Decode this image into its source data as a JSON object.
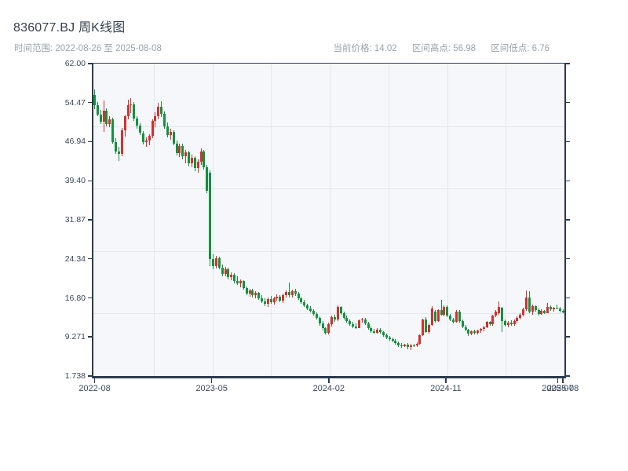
{
  "header": {
    "title": "836077.BJ 周K线图",
    "date_range": "时间范围: 2022-08-26 至 2025-08-08",
    "stats": [
      "当前价格: 14.02",
      "区间高点: 56.98",
      "区间低点: 6.76"
    ]
  },
  "chart_data": {
    "type": "candlestick",
    "title": "836077.BJ 周K线图",
    "frequency": "weekly",
    "current_price": 14.02,
    "range_high": 56.98,
    "range_low": 6.76,
    "ylim": [
      1.738,
      62.0
    ],
    "y_ticks": [
      "62.00",
      "54.47",
      "46.94",
      "39.40",
      "31.87",
      "24.34",
      "16.80",
      "9.271",
      "1.738"
    ],
    "x_ticks": [
      {
        "label": "2022-08",
        "index": 0
      },
      {
        "label": "2023-05",
        "index": 38.5
      },
      {
        "label": "2024-02",
        "index": 77
      },
      {
        "label": "2024-11",
        "index": 115.5
      },
      {
        "label": "2025-07",
        "index": 152.3
      },
      {
        "label": "2025-08",
        "index": 154
      }
    ],
    "grid": true,
    "legend": "none",
    "colors": {
      "up": "#d4302e",
      "down": "#149140",
      "plot_bg": "#f5f7fa",
      "grid": "#e3e7ec",
      "spine": "#2d3b4f"
    },
    "columns": [
      "date",
      "open",
      "high",
      "low",
      "close"
    ],
    "candles": [
      [
        "2022-08-26",
        55.9,
        56.98,
        53.2,
        54.0
      ],
      [
        "2022-09-02",
        54.0,
        54.6,
        51.8,
        52.2
      ],
      [
        "2022-09-09",
        52.2,
        53.0,
        50.3,
        50.8
      ],
      [
        "2022-09-16",
        50.8,
        54.9,
        48.9,
        52.9
      ],
      [
        "2022-09-23",
        52.9,
        53.3,
        49.9,
        50.3
      ],
      [
        "2022-09-30",
        50.3,
        51.8,
        49.7,
        51.2
      ],
      [
        "2022-10-07",
        51.2,
        51.6,
        46.5,
        46.9
      ],
      [
        "2022-10-14",
        46.9,
        47.6,
        44.6,
        45.1
      ],
      [
        "2022-10-21",
        45.1,
        46.0,
        43.3,
        44.6
      ],
      [
        "2022-10-28",
        44.6,
        49.6,
        44.2,
        49.2
      ],
      [
        "2022-11-04",
        49.2,
        52.0,
        47.9,
        51.8
      ],
      [
        "2022-11-11",
        51.8,
        55.0,
        51.2,
        53.9
      ],
      [
        "2022-11-18",
        53.9,
        55.4,
        52.4,
        54.2
      ],
      [
        "2022-11-25",
        54.2,
        54.6,
        50.9,
        51.4
      ],
      [
        "2022-12-02",
        51.4,
        51.9,
        49.4,
        50.0
      ],
      [
        "2022-12-09",
        50.0,
        50.5,
        48.2,
        48.6
      ],
      [
        "2022-12-16",
        48.6,
        49.0,
        46.4,
        46.9
      ],
      [
        "2022-12-23",
        46.9,
        47.8,
        45.9,
        47.2
      ],
      [
        "2022-12-30",
        47.2,
        48.4,
        46.3,
        48.0
      ],
      [
        "2023-01-06",
        48.0,
        51.2,
        47.6,
        50.9
      ],
      [
        "2023-01-13",
        50.9,
        52.6,
        49.8,
        51.9
      ],
      [
        "2023-01-20",
        51.9,
        54.5,
        51.3,
        53.6
      ],
      [
        "2023-01-27",
        53.6,
        54.8,
        51.7,
        52.3
      ],
      [
        "2023-02-03",
        52.3,
        52.8,
        49.5,
        49.9
      ],
      [
        "2023-02-10",
        49.9,
        50.6,
        47.7,
        48.2
      ],
      [
        "2023-02-17",
        48.2,
        49.4,
        47.3,
        48.9
      ],
      [
        "2023-02-24",
        48.9,
        49.2,
        46.2,
        46.6
      ],
      [
        "2023-03-03",
        46.6,
        47.1,
        44.3,
        44.8
      ],
      [
        "2023-03-10",
        44.8,
        46.6,
        44.0,
        46.1
      ],
      [
        "2023-03-17",
        46.1,
        46.5,
        43.6,
        44.1
      ],
      [
        "2023-03-24",
        44.1,
        45.3,
        42.8,
        44.9
      ],
      [
        "2023-03-31",
        44.9,
        45.2,
        42.2,
        42.7
      ],
      [
        "2023-04-07",
        42.7,
        44.4,
        42.0,
        43.9
      ],
      [
        "2023-04-14",
        43.9,
        44.2,
        41.3,
        41.8
      ],
      [
        "2023-04-21",
        41.8,
        43.5,
        41.0,
        43.0
      ],
      [
        "2023-04-28",
        43.0,
        45.6,
        42.5,
        45.1
      ],
      [
        "2023-05-05",
        45.1,
        45.4,
        41.6,
        42.0
      ],
      [
        "2023-05-12",
        42.0,
        42.4,
        37.0,
        37.4
      ],
      [
        "2023-05-19",
        41.0,
        41.4,
        23.0,
        24.3
      ],
      [
        "2023-05-26",
        24.3,
        25.2,
        22.4,
        22.9
      ],
      [
        "2023-06-02",
        22.9,
        24.9,
        22.5,
        24.5
      ],
      [
        "2023-06-09",
        24.5,
        24.8,
        22.3,
        22.7
      ],
      [
        "2023-06-16",
        22.7,
        23.3,
        21.0,
        21.4
      ],
      [
        "2023-06-23",
        21.4,
        22.8,
        20.9,
        22.4
      ],
      [
        "2023-06-30",
        22.4,
        22.7,
        20.4,
        20.8
      ],
      [
        "2023-07-07",
        20.8,
        21.7,
        20.2,
        21.3
      ],
      [
        "2023-07-14",
        21.3,
        21.6,
        19.6,
        20.0
      ],
      [
        "2023-07-21",
        20.0,
        20.9,
        19.3,
        19.6
      ],
      [
        "2023-07-28",
        19.6,
        20.3,
        18.9,
        20.0
      ],
      [
        "2023-08-04",
        20.0,
        20.2,
        18.4,
        18.7
      ],
      [
        "2023-08-11",
        18.7,
        19.0,
        17.3,
        17.7
      ],
      [
        "2023-08-18",
        17.7,
        18.6,
        17.0,
        18.2
      ],
      [
        "2023-08-25",
        18.2,
        18.5,
        16.9,
        17.3
      ],
      [
        "2023-09-01",
        17.3,
        18.1,
        16.8,
        17.8
      ],
      [
        "2023-09-08",
        17.8,
        18.0,
        16.4,
        16.7
      ],
      [
        "2023-09-15",
        16.7,
        17.4,
        15.8,
        16.1
      ],
      [
        "2023-09-22",
        16.1,
        16.8,
        15.2,
        15.6
      ],
      [
        "2023-09-29",
        15.6,
        16.9,
        15.1,
        16.6
      ],
      [
        "2023-10-06",
        16.6,
        17.2,
        15.7,
        16.0
      ],
      [
        "2023-10-13",
        16.0,
        17.0,
        15.5,
        16.8
      ],
      [
        "2023-10-20",
        16.8,
        17.5,
        16.2,
        17.1
      ],
      [
        "2023-10-27",
        17.1,
        17.4,
        15.9,
        16.3
      ],
      [
        "2023-11-03",
        16.3,
        17.7,
        15.8,
        17.4
      ],
      [
        "2023-11-10",
        17.4,
        18.3,
        16.9,
        17.9
      ],
      [
        "2023-11-17",
        17.9,
        19.8,
        16.9,
        17.3
      ],
      [
        "2023-11-24",
        17.3,
        18.4,
        16.9,
        18.1
      ],
      [
        "2023-12-01",
        18.1,
        18.5,
        17.2,
        17.6
      ],
      [
        "2023-12-08",
        17.6,
        17.9,
        16.4,
        16.7
      ],
      [
        "2023-12-15",
        16.7,
        17.0,
        15.7,
        16.0
      ],
      [
        "2023-12-22",
        16.0,
        16.4,
        15.0,
        15.3
      ],
      [
        "2023-12-29",
        15.3,
        15.7,
        14.5,
        14.8
      ],
      [
        "2024-01-05",
        14.8,
        15.2,
        14.0,
        14.3
      ],
      [
        "2024-01-12",
        14.3,
        14.6,
        13.4,
        13.7
      ],
      [
        "2024-01-19",
        13.7,
        14.0,
        12.6,
        12.9
      ],
      [
        "2024-01-26",
        12.9,
        13.2,
        11.5,
        11.9
      ],
      [
        "2024-02-02",
        11.9,
        12.4,
        10.5,
        10.9
      ],
      [
        "2024-02-09",
        10.9,
        11.2,
        9.7,
        10.1
      ],
      [
        "2024-02-16",
        10.1,
        12.0,
        9.8,
        11.7
      ],
      [
        "2024-02-23",
        11.7,
        13.4,
        11.3,
        13.1
      ],
      [
        "2024-03-01",
        13.1,
        13.6,
        12.2,
        12.6
      ],
      [
        "2024-03-08",
        12.6,
        15.4,
        12.3,
        15.0
      ],
      [
        "2024-03-15",
        15.0,
        15.2,
        13.5,
        13.8
      ],
      [
        "2024-03-22",
        13.8,
        14.1,
        12.7,
        13.0
      ],
      [
        "2024-03-29",
        13.0,
        13.4,
        12.0,
        12.3
      ],
      [
        "2024-04-05",
        12.3,
        12.7,
        11.4,
        11.7
      ],
      [
        "2024-04-12",
        11.7,
        12.2,
        11.0,
        11.3
      ],
      [
        "2024-04-19",
        11.3,
        11.9,
        10.8,
        11.0
      ],
      [
        "2024-04-26",
        11.0,
        12.7,
        10.9,
        12.5
      ],
      [
        "2024-05-03",
        12.5,
        13.0,
        12.0,
        12.7
      ],
      [
        "2024-05-10",
        12.7,
        12.9,
        11.6,
        11.9
      ],
      [
        "2024-05-17",
        11.9,
        12.2,
        10.6,
        10.9
      ],
      [
        "2024-05-24",
        10.9,
        11.3,
        10.1,
        10.4
      ],
      [
        "2024-05-31",
        10.4,
        10.8,
        9.9,
        10.1
      ],
      [
        "2024-06-07",
        10.1,
        10.9,
        9.9,
        10.7
      ],
      [
        "2024-06-14",
        10.7,
        10.9,
        9.9,
        10.2
      ],
      [
        "2024-06-21",
        10.2,
        10.4,
        9.3,
        9.6
      ],
      [
        "2024-06-28",
        9.6,
        9.9,
        8.9,
        9.2
      ],
      [
        "2024-07-05",
        9.2,
        9.5,
        8.6,
        8.9
      ],
      [
        "2024-07-12",
        8.9,
        9.2,
        8.3,
        8.6
      ],
      [
        "2024-07-19",
        8.6,
        8.9,
        7.8,
        8.1
      ],
      [
        "2024-07-26",
        8.1,
        8.4,
        7.4,
        7.7
      ],
      [
        "2024-08-02",
        7.7,
        8.1,
        7.2,
        7.5
      ],
      [
        "2024-08-09",
        7.5,
        8.0,
        7.3,
        7.8
      ],
      [
        "2024-08-16",
        7.8,
        8.1,
        6.9,
        7.4
      ],
      [
        "2024-08-23",
        7.4,
        7.9,
        6.76,
        7.7
      ],
      [
        "2024-08-30",
        7.7,
        8.0,
        7.3,
        7.6
      ],
      [
        "2024-09-06",
        7.6,
        8.2,
        7.4,
        8.0
      ],
      [
        "2024-09-13",
        8.0,
        9.7,
        7.8,
        9.6
      ],
      [
        "2024-09-20",
        9.6,
        12.8,
        9.4,
        12.6
      ],
      [
        "2024-09-27",
        12.6,
        13.1,
        10.0,
        10.2
      ],
      [
        "2024-10-04",
        10.2,
        11.9,
        9.9,
        11.6
      ],
      [
        "2024-10-11",
        11.6,
        15.2,
        11.4,
        14.7
      ],
      [
        "2024-10-18",
        14.2,
        14.5,
        12.1,
        12.4
      ],
      [
        "2024-10-25",
        12.4,
        14.6,
        12.2,
        14.4
      ],
      [
        "2024-11-01",
        14.4,
        16.5,
        13.4,
        13.6
      ],
      [
        "2024-11-08",
        13.6,
        15.4,
        13.3,
        15.1
      ],
      [
        "2024-11-15",
        15.1,
        15.3,
        13.1,
        13.4
      ],
      [
        "2024-11-22",
        13.4,
        13.7,
        12.4,
        12.7
      ],
      [
        "2024-11-29",
        12.7,
        13.0,
        11.9,
        12.2
      ],
      [
        "2024-12-06",
        12.2,
        14.4,
        12.0,
        14.2
      ],
      [
        "2024-12-13",
        14.2,
        14.4,
        12.0,
        12.3
      ],
      [
        "2024-12-20",
        12.3,
        12.6,
        10.9,
        11.2
      ],
      [
        "2024-12-27",
        11.2,
        11.6,
        10.3,
        10.6
      ],
      [
        "2025-01-03",
        10.6,
        10.8,
        9.4,
        9.9
      ],
      [
        "2025-01-10",
        9.9,
        10.5,
        9.6,
        10.3
      ],
      [
        "2025-01-17",
        10.3,
        10.6,
        9.7,
        10.0
      ],
      [
        "2025-01-24",
        10.0,
        10.7,
        9.8,
        10.5
      ],
      [
        "2025-01-31",
        10.5,
        11.0,
        10.1,
        10.8
      ],
      [
        "2025-02-07",
        10.8,
        11.4,
        10.4,
        11.1
      ],
      [
        "2025-02-14",
        11.1,
        12.4,
        10.9,
        12.2
      ],
      [
        "2025-02-21",
        12.2,
        12.4,
        11.4,
        11.7
      ],
      [
        "2025-02-28",
        11.7,
        13.6,
        11.5,
        13.4
      ],
      [
        "2025-03-07",
        13.4,
        14.5,
        13.1,
        14.1
      ],
      [
        "2025-03-14",
        13.9,
        16.1,
        13.5,
        15.0
      ],
      [
        "2025-03-21",
        14.9,
        15.1,
        10.2,
        12.3
      ],
      [
        "2025-03-28",
        12.3,
        12.6,
        11.3,
        11.6
      ],
      [
        "2025-04-04",
        11.6,
        12.4,
        11.2,
        12.1
      ],
      [
        "2025-04-11",
        12.1,
        12.5,
        11.4,
        11.7
      ],
      [
        "2025-04-18",
        11.7,
        12.6,
        11.5,
        12.4
      ],
      [
        "2025-04-25",
        12.4,
        13.2,
        12.1,
        13.0
      ],
      [
        "2025-05-02",
        13.0,
        13.9,
        12.7,
        13.6
      ],
      [
        "2025-05-09",
        13.6,
        14.9,
        13.2,
        14.6
      ],
      [
        "2025-05-16",
        14.6,
        18.3,
        14.3,
        16.9
      ],
      [
        "2025-05-23",
        16.9,
        18.1,
        13.9,
        14.2
      ],
      [
        "2025-05-30",
        14.2,
        15.5,
        13.6,
        15.2
      ],
      [
        "2025-06-06",
        15.2,
        15.4,
        14.1,
        14.4
      ],
      [
        "2025-06-13",
        14.4,
        14.7,
        13.4,
        13.7
      ],
      [
        "2025-06-20",
        13.7,
        14.6,
        13.5,
        14.3
      ],
      [
        "2025-06-27",
        14.3,
        14.5,
        13.7,
        13.9
      ],
      [
        "2025-07-04",
        13.9,
        15.8,
        13.8,
        15.0
      ],
      [
        "2025-07-11",
        15.0,
        15.3,
        14.3,
        14.6
      ],
      [
        "2025-07-18",
        14.6,
        15.1,
        14.2,
        14.9
      ],
      [
        "2025-07-25",
        14.9,
        15.5,
        14.6,
        14.8
      ],
      [
        "2025-08-01",
        14.8,
        15.0,
        14.0,
        14.3
      ],
      [
        "2025-08-08",
        14.3,
        14.6,
        13.8,
        14.02
      ]
    ]
  }
}
